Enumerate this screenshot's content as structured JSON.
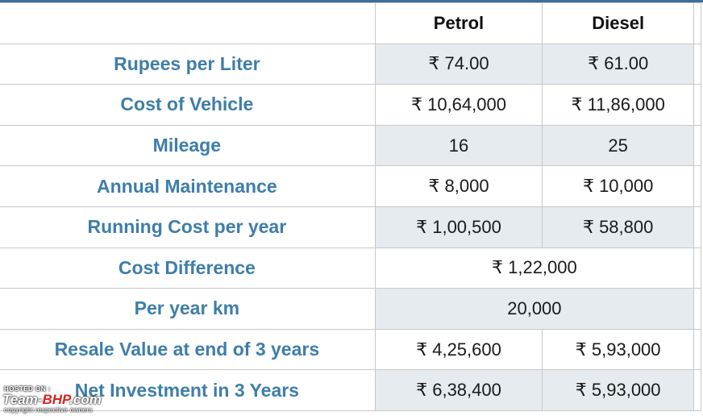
{
  "table": {
    "headers": [
      "",
      "Petrol",
      "Diesel"
    ],
    "rows": [
      {
        "label": "Rupees per Liter",
        "petrol": "₹ 74.00",
        "diesel": "₹ 61.00"
      },
      {
        "label": "Cost of Vehicle",
        "petrol": "₹ 10,64,000",
        "diesel": "₹ 11,86,000"
      },
      {
        "label": "Mileage",
        "petrol": "16",
        "diesel": "25"
      },
      {
        "label": "Annual Maintenance",
        "petrol": "₹ 8,000",
        "diesel": "₹ 10,000"
      },
      {
        "label": "Running Cost per year",
        "petrol": "₹ 1,00,500",
        "diesel": "₹ 58,800"
      },
      {
        "label": "Cost Difference",
        "merged": "₹ 1,22,000"
      },
      {
        "label": "Per year km",
        "merged": "20,000"
      },
      {
        "label": "Resale Value at end of 3 years",
        "petrol": "₹ 4,25,600",
        "diesel": "₹ 5,93,000"
      },
      {
        "label": "Net Investment in 3 Years",
        "petrol": "₹ 6,38,400",
        "diesel": "₹ 5,93,000"
      }
    ]
  },
  "watermark": {
    "hosted_on": "HOSTED ON :",
    "logo_part1": "Team-",
    "logo_part2": "BHP",
    "logo_part3": ".com",
    "copyright": "copyright respective owners"
  },
  "colors": {
    "label_text": "#3e7ea9",
    "shaded_cell": "#e6ebef",
    "border": "#c8c8c8",
    "top_bar": "#3f6f99"
  }
}
